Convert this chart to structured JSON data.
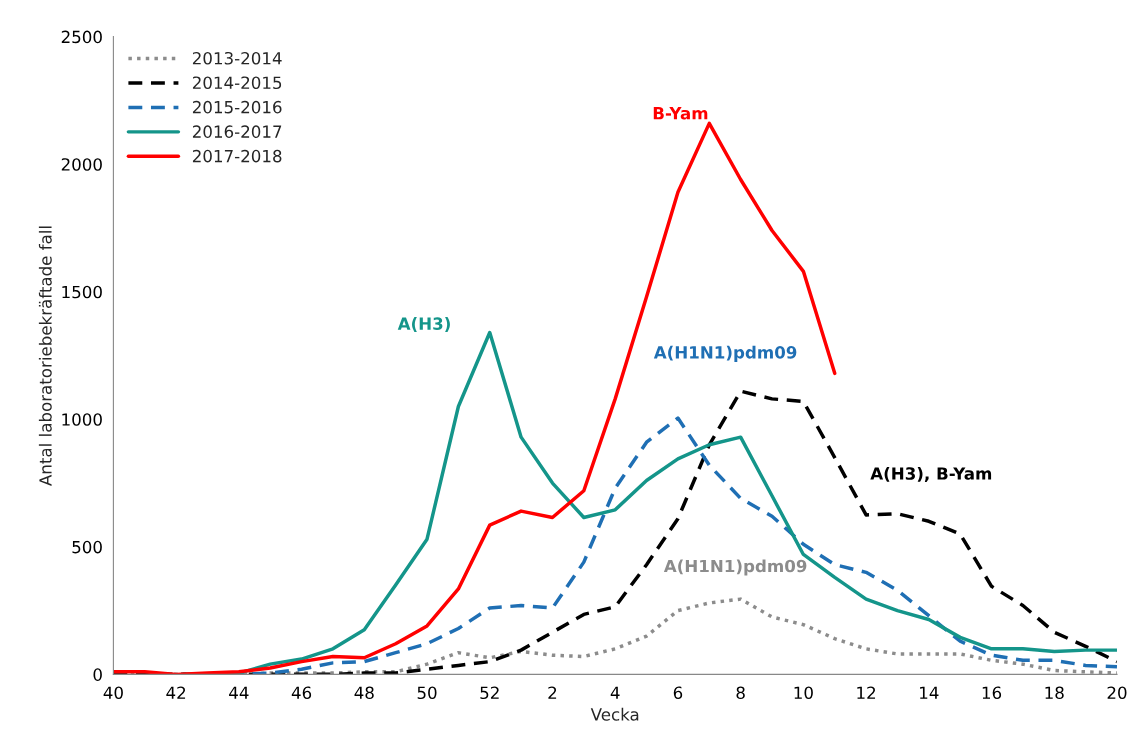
{
  "chart_data": {
    "type": "line",
    "xlabel": "Vecka",
    "ylabel": "Antal laboratoriebekräftade fall",
    "categories": [
      "40",
      null,
      "42",
      null,
      "44",
      null,
      "46",
      null,
      "48",
      null,
      "50",
      null,
      "52",
      null,
      "2",
      null,
      "4",
      null,
      "6",
      null,
      "8",
      null,
      "10",
      null,
      "12",
      null,
      "14",
      null,
      "16",
      null,
      "18",
      null,
      "20"
    ],
    "series": [
      {
        "name": "2013-2014",
        "color": "#8c8c8c",
        "line_style": "dotted",
        "values": [
          0,
          0,
          0,
          0,
          0,
          5,
          5,
          5,
          10,
          10,
          40,
          85,
          65,
          90,
          75,
          70,
          100,
          150,
          250,
          280,
          295,
          225,
          195,
          140,
          100,
          80,
          80,
          80,
          55,
          40,
          15,
          10,
          5
        ]
      },
      {
        "name": "2014-2015",
        "color": "#000000",
        "line_style": "dashed",
        "values": [
          0,
          0,
          0,
          0,
          0,
          0,
          0,
          0,
          5,
          5,
          20,
          35,
          50,
          95,
          165,
          235,
          265,
          430,
          610,
          900,
          1110,
          1080,
          1070,
          850,
          625,
          630,
          600,
          550,
          345,
          270,
          165,
          110,
          50
        ]
      },
      {
        "name": "2015-2016",
        "color": "#1f6fb4",
        "line_style": "dashed",
        "values": [
          null,
          null,
          null,
          0,
          0,
          5,
          20,
          45,
          50,
          85,
          120,
          180,
          260,
          270,
          260,
          440,
          730,
          910,
          1005,
          820,
          690,
          620,
          510,
          430,
          400,
          330,
          230,
          130,
          75,
          55,
          55,
          35,
          30
        ]
      },
      {
        "name": "2016-2017",
        "color": "#14958a",
        "line_style": "solid",
        "values": [
          null,
          null,
          null,
          0,
          5,
          40,
          60,
          100,
          175,
          350,
          530,
          1050,
          1340,
          930,
          750,
          615,
          645,
          760,
          845,
          900,
          930,
          700,
          470,
          380,
          295,
          250,
          215,
          145,
          100,
          100,
          90,
          95,
          95
        ]
      },
      {
        "name": "2017-2018",
        "color": "#ff0000",
        "line_style": "solid",
        "values": [
          10,
          10,
          0,
          5,
          10,
          25,
          50,
          70,
          65,
          120,
          190,
          335,
          585,
          640,
          615,
          720,
          1080,
          1480,
          1890,
          2160,
          1940,
          1740,
          1580,
          1180,
          null,
          null,
          null,
          null,
          null,
          null,
          null,
          null,
          null
        ]
      }
    ],
    "annotations": [
      "A(H3)",
      "B-Yam",
      "A(H1N1)pdm09",
      "A(H1N1)pdm09",
      "A(H3), B-Yam"
    ],
    "ylim": [
      0,
      2500
    ],
    "yticks": [
      0,
      500,
      1000,
      1500,
      2000,
      2500
    ],
    "grid": false,
    "legend": "top left"
  }
}
